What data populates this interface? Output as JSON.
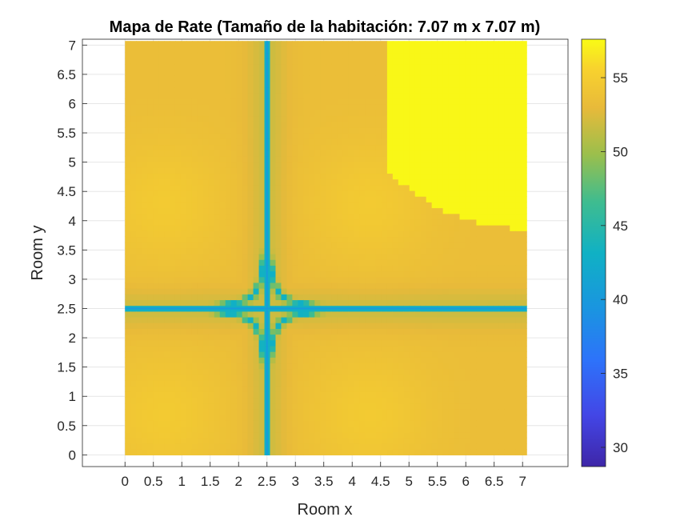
{
  "chart_data": {
    "type": "heatmap",
    "title": "Mapa de Rate (Tamaño de la habitación: 7.07 m x 7.07 m)",
    "xlabel": "Room x",
    "ylabel": "Room y",
    "x_range": [
      0,
      7.07
    ],
    "y_range": [
      0,
      7.07
    ],
    "xlim": [
      -0.75,
      7.8
    ],
    "ylim": [
      -0.2,
      7.1
    ],
    "x_ticks": [
      "0",
      "0.5",
      "1",
      "1.5",
      "2",
      "2.5",
      "3",
      "3.5",
      "4",
      "4.5",
      "5",
      "5.5",
      "6",
      "6.5",
      "7"
    ],
    "y_ticks": [
      "0",
      "0.5",
      "1",
      "1.5",
      "2",
      "2.5",
      "3",
      "3.5",
      "4",
      "4.5",
      "5",
      "5.5",
      "6",
      "6.5",
      "7"
    ],
    "colorbar": {
      "range": [
        28.7,
        57.6
      ],
      "ticks": [
        "30",
        "35",
        "40",
        "45",
        "50",
        "55"
      ],
      "colormap": "parula"
    },
    "features": {
      "min_line_x": 2.5,
      "min_line_y": 2.5,
      "local_maxima": [
        [
          0.7,
          4.3
        ],
        [
          4.3,
          4.3
        ],
        [
          0.7,
          0.7
        ],
        [
          4.3,
          0.7
        ]
      ],
      "saturated_region": "top-right"
    },
    "grid": true,
    "colors": {
      "low": "#3e26a8",
      "mid": "#2db7a1",
      "mid_high": "#cfb93b",
      "high": "#f9fb15",
      "grid": "#e6e6e6"
    }
  }
}
